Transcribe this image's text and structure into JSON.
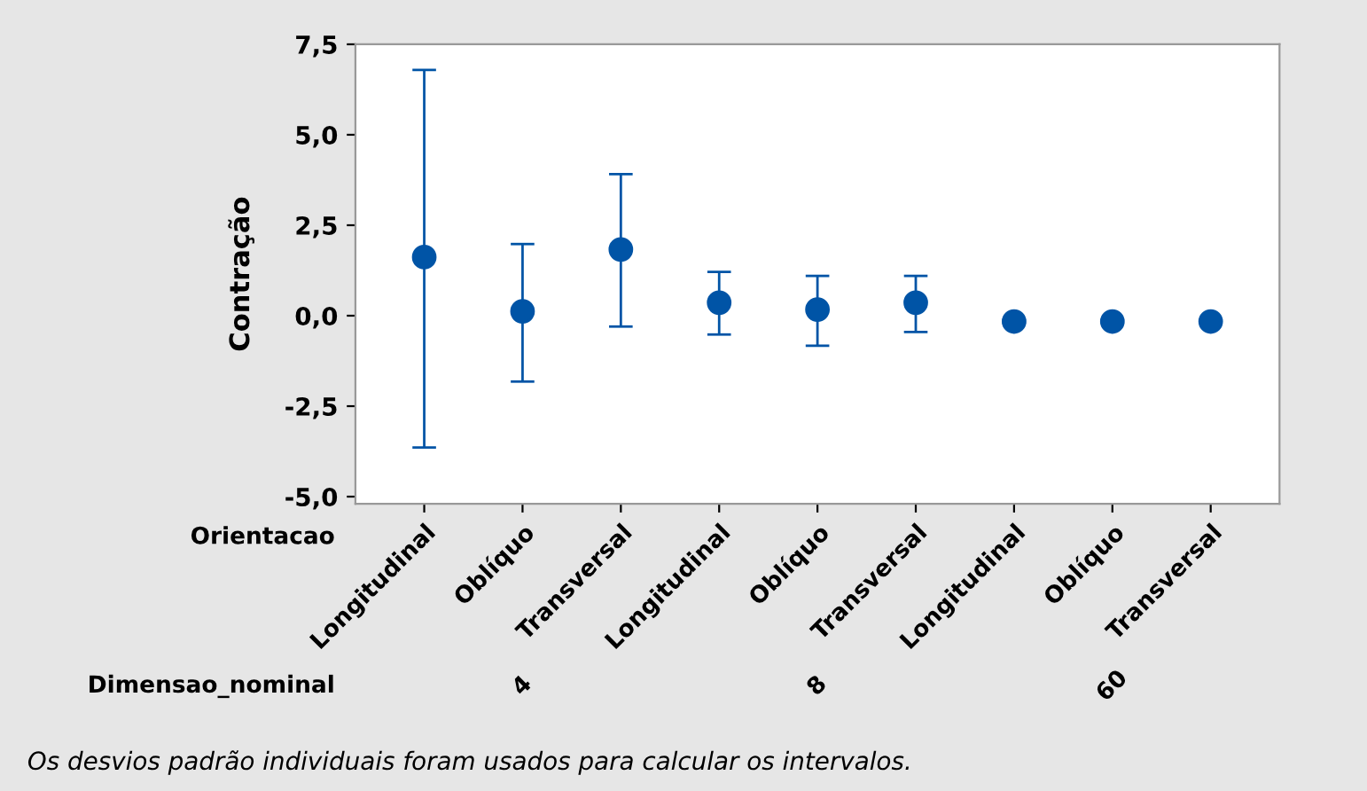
{
  "chart_data": {
    "type": "scatter",
    "ylabel": "Contração",
    "categories": [
      "Longitudinal",
      "Oblíquo",
      "Transversal",
      "Longitudinal",
      "Oblíquo",
      "Transversal",
      "Longitudinal",
      "Oblíquo",
      "Transversal"
    ],
    "series": [
      {
        "color": "#0054a6",
        "values": [
          1.62,
          0.12,
          1.83,
          0.36,
          0.17,
          0.36,
          -0.16,
          -0.16,
          -0.16
        ],
        "errors": [
          [
            -3.64,
            6.79
          ],
          [
            -1.82,
            1.98
          ],
          [
            -0.3,
            3.91
          ],
          [
            -0.52,
            1.21
          ],
          [
            -0.83,
            1.1
          ],
          [
            -0.45,
            1.1
          ],
          [
            -0.2,
            -0.12
          ],
          [
            -0.2,
            -0.12
          ],
          [
            -0.2,
            -0.12
          ]
        ]
      }
    ],
    "ylim": [
      -5.2,
      7.5
    ],
    "yticks": [
      {
        "value": -5,
        "label": "-5,0"
      },
      {
        "value": -2.5,
        "label": "-2,5"
      },
      {
        "value": 0,
        "label": "0,0"
      },
      {
        "value": 2.5,
        "label": "2,5"
      },
      {
        "value": 5,
        "label": "5,0"
      },
      {
        "value": 7.5,
        "label": "7,5"
      }
    ],
    "grid": false,
    "legend": false,
    "marker": "circle",
    "annotations": [
      "Orientacao",
      "Dimensao_nominal",
      "4",
      "8",
      "60",
      "Os desvios padrão individuais foram usados para calcular os intervalos."
    ]
  }
}
